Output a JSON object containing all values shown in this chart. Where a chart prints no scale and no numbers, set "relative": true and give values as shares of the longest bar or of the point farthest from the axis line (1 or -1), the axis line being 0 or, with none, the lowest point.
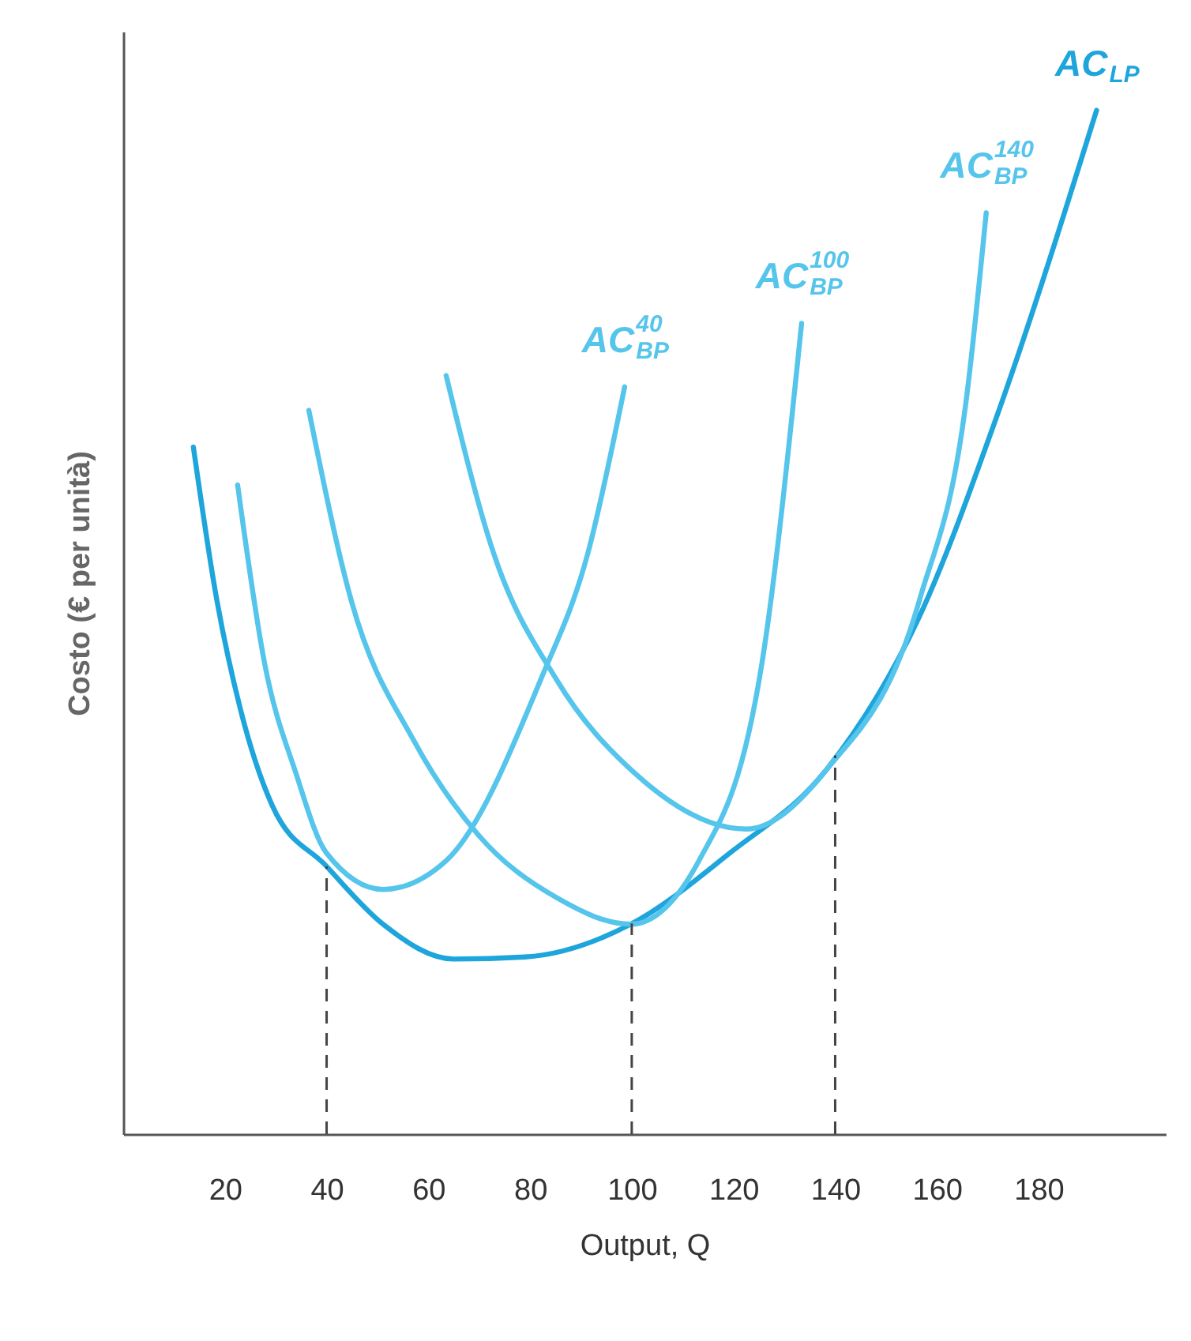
{
  "chart_data": {
    "type": "line",
    "relative": true,
    "xlabel": "Output, Q",
    "ylabel": "Costo (€ per unità)",
    "xlim": [
      0,
      205
    ],
    "xticks": [
      20,
      40,
      60,
      80,
      100,
      120,
      140,
      160,
      180
    ],
    "grid": false,
    "legend": false,
    "series": [
      {
        "name": "AC$_{LP}$",
        "color": "#1ea5dc",
        "x": [
          13.8,
          18.4,
          23.1,
          29.3,
          39.9,
          51.1,
          65.0,
          79.0,
          99.8,
          119.4,
          138.3,
          156.6,
          172.2,
          191.4
        ],
        "values": [
          0.671,
          0.522,
          0.414,
          0.321,
          0.262,
          0.205,
          0.171,
          0.173,
          0.205,
          0.275,
          0.356,
          0.506,
          0.707,
          1.0
        ]
      },
      {
        "name": "AC$_{BP}$$^{40}$",
        "color": "#55c5ec",
        "x": [
          22.5,
          27.8,
          34.0,
          39.9,
          51.1,
          63.5,
          82.1,
          91.4,
          98.6
        ],
        "values": [
          0.634,
          0.46,
          0.352,
          0.275,
          0.239,
          0.267,
          0.444,
          0.568,
          0.73
        ]
      },
      {
        "name": "AC$_{BP}$$^{100}$",
        "color": "#55c5ec",
        "x": [
          36.5,
          44.8,
          57.3,
          69.7,
          85.2,
          99.8,
          113.2,
          125.6,
          133.4
        ],
        "values": [
          0.707,
          0.522,
          0.383,
          0.293,
          0.231,
          0.205,
          0.267,
          0.46,
          0.792
        ]
      },
      {
        "name": "AC$_{BP}$$^{140}$",
        "color": "#55c5ec",
        "x": [
          63.5,
          72.8,
          85.2,
          100.7,
          122.5,
          138.3,
          156.6,
          165.9,
          169.7
        ],
        "values": [
          0.741,
          0.568,
          0.444,
          0.352,
          0.298,
          0.356,
          0.522,
          0.722,
          0.9
        ]
      }
    ],
    "ref_lines": [
      {
        "axis": "x",
        "value": 40,
        "line_style": "dashed",
        "color": "#444444"
      },
      {
        "axis": "x",
        "value": 100,
        "line_style": "dashed",
        "color": "#444444"
      },
      {
        "axis": "x",
        "value": 140,
        "line_style": "dashed",
        "color": "#444444"
      }
    ]
  }
}
